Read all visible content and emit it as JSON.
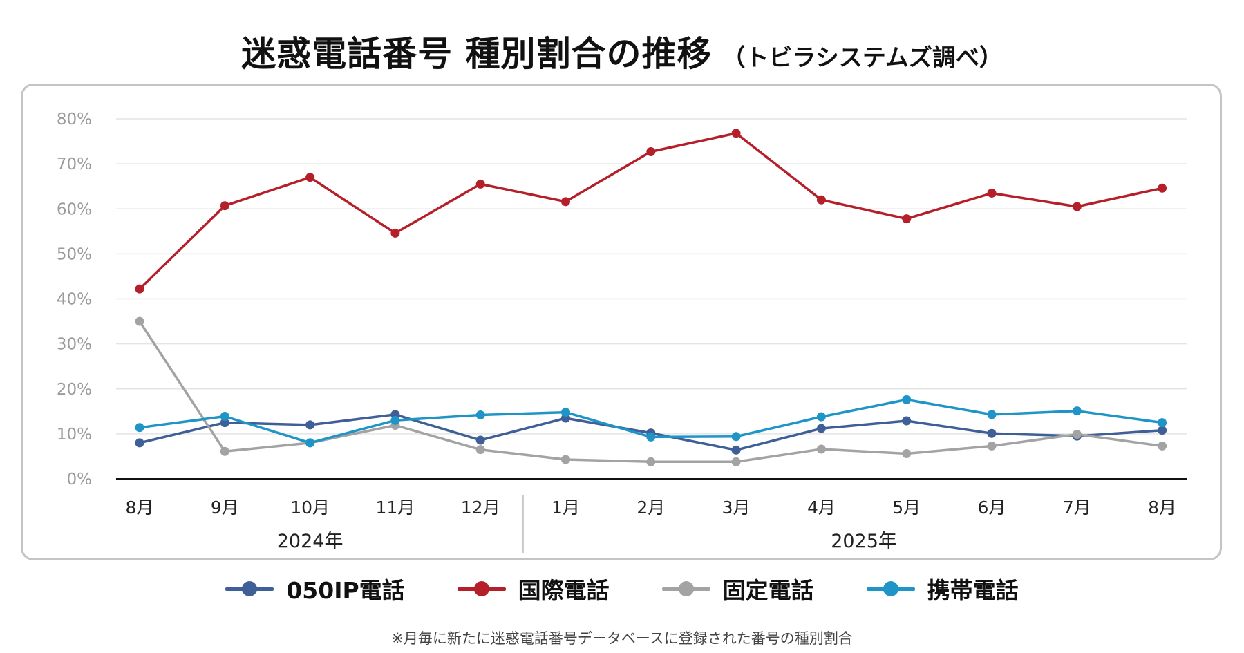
{
  "title": {
    "main": "迷惑電話番号 種別割合の推移",
    "sub": "（トビラシステムズ調べ）"
  },
  "footnote": "※月毎に新たに迷惑電話番号データベースに登録された番号の種別割合",
  "legend": [
    {
      "label": "050IP電話",
      "color": "#3f5f97"
    },
    {
      "label": "国際電話",
      "color": "#b51f2a"
    },
    {
      "label": "固定電話",
      "color": "#a3a3a3"
    },
    {
      "label": "携帯電話",
      "color": "#1f95c7"
    }
  ],
  "chart_data": {
    "type": "line",
    "categories": [
      "8月",
      "9月",
      "10月",
      "11月",
      "12月",
      "1月",
      "2月",
      "3月",
      "4月",
      "5月",
      "6月",
      "7月",
      "8月"
    ],
    "year_groups": [
      {
        "label": "2024年",
        "span": [
          0,
          4
        ]
      },
      {
        "label": "2025年",
        "span": [
          5,
          12
        ]
      }
    ],
    "y_ticks": [
      "0%",
      "10%",
      "20%",
      "30%",
      "40%",
      "50%",
      "60%",
      "70%",
      "80%"
    ],
    "ylim": [
      0,
      80
    ],
    "grid": true,
    "legend_position": "bottom",
    "series": [
      {
        "name": "050IP電話",
        "color": "#3f5f97",
        "values": [
          8.0,
          12.5,
          12.0,
          14.3,
          8.6,
          13.5,
          10.2,
          6.4,
          11.2,
          12.9,
          10.1,
          9.5,
          10.8
        ]
      },
      {
        "name": "国際電話",
        "color": "#b51f2a",
        "values": [
          42.2,
          60.7,
          67.0,
          54.6,
          65.5,
          61.6,
          72.7,
          76.8,
          62.0,
          57.8,
          63.5,
          60.5,
          64.6
        ]
      },
      {
        "name": "固定電話",
        "color": "#a3a3a3",
        "values": [
          35.0,
          6.1,
          8.0,
          11.9,
          6.5,
          4.3,
          3.8,
          3.8,
          6.6,
          5.6,
          7.3,
          9.9,
          7.3
        ]
      },
      {
        "name": "携帯電話",
        "color": "#1f95c7",
        "values": [
          11.4,
          13.9,
          8.0,
          13.0,
          14.2,
          14.8,
          9.3,
          9.4,
          13.8,
          17.6,
          14.3,
          15.1,
          12.5
        ]
      }
    ]
  }
}
